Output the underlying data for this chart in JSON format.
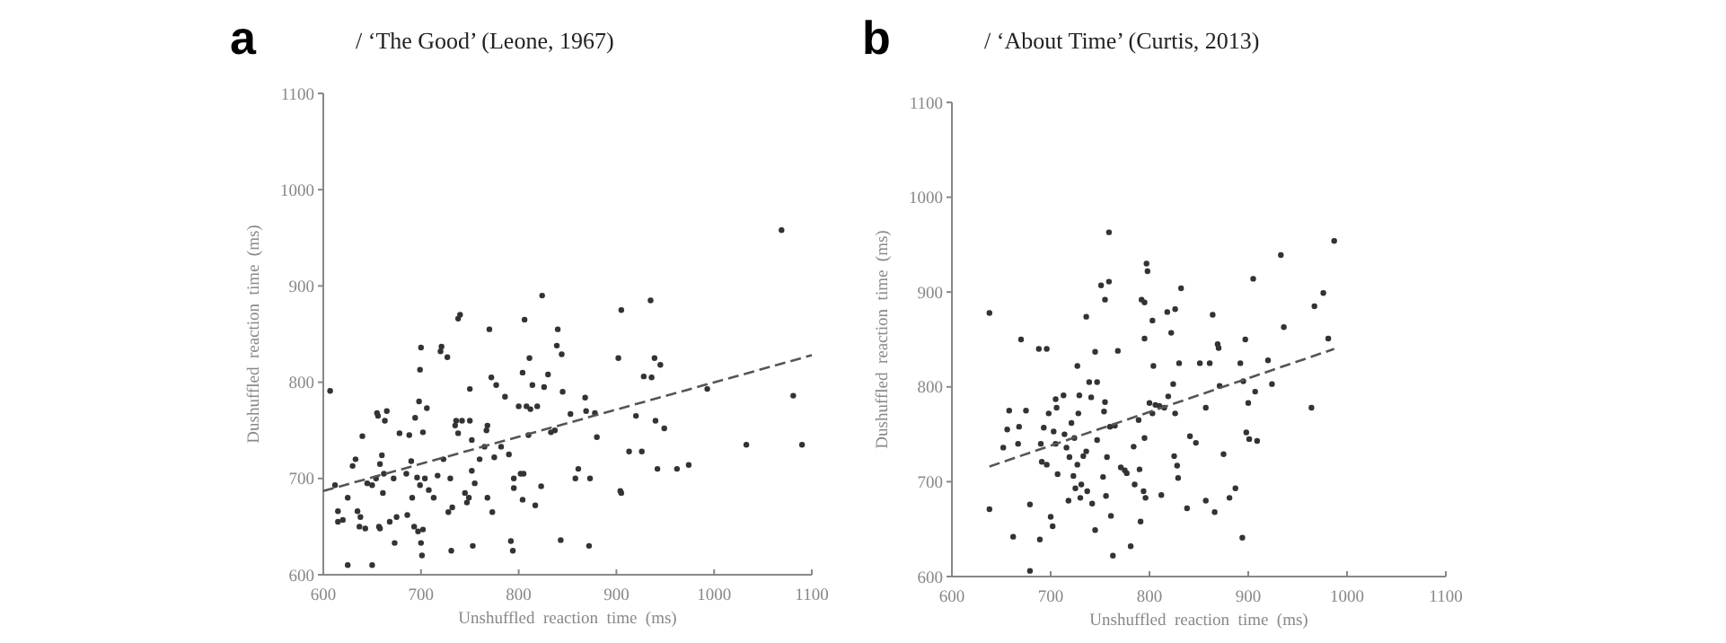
{
  "chart_data": [
    {
      "type": "scatter",
      "title": "/ ‘The Good’ (Leone, 1967)",
      "annotations": [
        "a"
      ],
      "xlabel": "Unshuffled  reaction  time  (ms)",
      "ylabel": "Dushuffled  reaction  time  (ms)",
      "xlim": [
        600,
        1100
      ],
      "ylim": [
        600,
        1100
      ],
      "xticks": [
        600,
        700,
        800,
        900,
        1000,
        1100
      ],
      "yticks": [
        600,
        700,
        800,
        900,
        1000,
        1100
      ],
      "series": [
        {
          "type": "scatter",
          "marker": "circle",
          "color": "#333333",
          "x": [
            607,
            612,
            615,
            615,
            620,
            625,
            625,
            630,
            633,
            635,
            637,
            638,
            640,
            643,
            645,
            650,
            650,
            654,
            655,
            656,
            657,
            658,
            658,
            660,
            661,
            662,
            663,
            665,
            668,
            672,
            673,
            675,
            678,
            685,
            686,
            688,
            690,
            691,
            693,
            694,
            696,
            697,
            698,
            699,
            699,
            700,
            700,
            701,
            702,
            702,
            704,
            706,
            708,
            713,
            717,
            720,
            721,
            723,
            727,
            728,
            730,
            731,
            732,
            735,
            736,
            738,
            738,
            740,
            742,
            745,
            747,
            749,
            750,
            750,
            752,
            752,
            753,
            755,
            760,
            765,
            767,
            768,
            768,
            770,
            772,
            773,
            775,
            777,
            782,
            786,
            790,
            792,
            794,
            795,
            795,
            800,
            802,
            804,
            804,
            805,
            806,
            808,
            810,
            811,
            812,
            814,
            817,
            819,
            823,
            824,
            826,
            830,
            833,
            837,
            839,
            840,
            843,
            844,
            845,
            853,
            858,
            861,
            868,
            869,
            872,
            873,
            878,
            880,
            902,
            904,
            905,
            905,
            913,
            920,
            926,
            928,
            935,
            936,
            939,
            940,
            942,
            945,
            949,
            962,
            974,
            993,
            1033,
            1069,
            1081,
            1090
          ],
          "values": [
            791,
            693,
            666,
            655,
            657,
            610,
            680,
            713,
            720,
            666,
            650,
            660,
            744,
            648,
            695,
            610,
            693,
            700,
            768,
            765,
            650,
            648,
            715,
            724,
            685,
            705,
            760,
            770,
            655,
            700,
            633,
            660,
            747,
            705,
            662,
            745,
            718,
            680,
            650,
            763,
            701,
            645,
            780,
            693,
            813,
            836,
            633,
            620,
            647,
            748,
            700,
            773,
            688,
            680,
            703,
            832,
            837,
            720,
            826,
            665,
            700,
            625,
            670,
            755,
            760,
            747,
            866,
            870,
            760,
            685,
            675,
            680,
            793,
            760,
            740,
            708,
            630,
            695,
            720,
            733,
            750,
            755,
            680,
            855,
            805,
            665,
            722,
            797,
            733,
            785,
            725,
            635,
            625,
            700,
            690,
            775,
            705,
            678,
            810,
            705,
            865,
            775,
            745,
            825,
            772,
            797,
            672,
            775,
            692,
            890,
            795,
            808,
            748,
            750,
            838,
            855,
            636,
            829,
            790,
            767,
            700,
            710,
            784,
            770,
            630,
            700,
            768,
            743,
            825,
            687,
            685,
            875,
            728,
            765,
            728,
            806,
            885,
            805,
            825,
            760,
            710,
            818,
            752,
            710,
            714,
            793,
            735,
            958,
            786,
            735
          ]
        },
        {
          "type": "line",
          "color": "#555555",
          "line_style": "dashed",
          "x": [
            600,
            1100
          ],
          "values": [
            687,
            828
          ]
        }
      ]
    },
    {
      "type": "scatter",
      "title": "/ ‘About Time’ (Curtis, 2013)",
      "annotations": [
        "b"
      ],
      "xlabel": "Unshuffled  reaction  time  (ms)",
      "ylabel": "Dushuffled  reaction  time  (ms)",
      "xlim": [
        600,
        1100
      ],
      "ylim": [
        600,
        1100
      ],
      "xticks": [
        600,
        700,
        800,
        900,
        1000,
        1100
      ],
      "yticks": [
        600,
        700,
        800,
        900,
        1000,
        1100
      ],
      "series": [
        {
          "type": "scatter",
          "marker": "circle",
          "color": "#333333",
          "x": [
            638,
            638,
            652,
            656,
            658,
            662,
            667,
            668,
            670,
            675,
            679,
            679,
            688,
            689,
            690,
            691,
            693,
            696,
            696,
            698,
            700,
            702,
            703,
            705,
            706,
            705,
            707,
            713,
            714,
            716,
            718,
            719,
            721,
            723,
            724,
            725,
            727,
            727,
            728,
            729,
            730,
            731,
            733,
            736,
            736,
            737,
            739,
            741,
            742,
            745,
            745,
            747,
            747,
            751,
            753,
            754,
            755,
            755,
            756,
            757,
            759,
            759,
            760,
            761,
            763,
            765,
            768,
            771,
            775,
            777,
            781,
            784,
            785,
            789,
            790,
            791,
            792,
            794,
            795,
            795,
            795,
            796,
            797,
            798,
            800,
            803,
            804,
            803,
            806,
            810,
            812,
            815,
            818,
            819,
            822,
            824,
            825,
            826,
            826,
            828,
            829,
            830,
            832,
            838,
            841,
            847,
            851,
            857,
            857,
            861,
            864,
            866,
            869,
            870,
            871,
            875,
            881,
            887,
            892,
            894,
            895,
            897,
            898,
            900,
            901,
            905,
            907,
            909,
            920,
            924,
            933,
            936,
            964,
            967,
            976,
            981,
            987
          ],
          "values": [
            878,
            671,
            736,
            755,
            775,
            642,
            740,
            758,
            850,
            775,
            676,
            606,
            840,
            639,
            740,
            721,
            757,
            718,
            840,
            772,
            663,
            653,
            753,
            787,
            778,
            740,
            708,
            791,
            750,
            736,
            680,
            726,
            762,
            706,
            746,
            693,
            822,
            718,
            772,
            791,
            683,
            697,
            727,
            732,
            874,
            690,
            805,
            789,
            677,
            837,
            649,
            805,
            744,
            907,
            705,
            774,
            784,
            892,
            685,
            726,
            911,
            963,
            758,
            664,
            622,
            759,
            838,
            715,
            712,
            709,
            632,
            737,
            697,
            765,
            713,
            658,
            892,
            690,
            889,
            851,
            746,
            683,
            930,
            922,
            783,
            870,
            822,
            772,
            781,
            780,
            686,
            778,
            879,
            790,
            857,
            803,
            727,
            882,
            772,
            717,
            704,
            825,
            904,
            672,
            748,
            741,
            825,
            778,
            680,
            825,
            876,
            668,
            845,
            841,
            801,
            729,
            683,
            693,
            825,
            641,
            806,
            850,
            752,
            783,
            745,
            914,
            795,
            743,
            828,
            803,
            939,
            863,
            778,
            885,
            899,
            851,
            954
          ]
        },
        {
          "type": "line",
          "color": "#555555",
          "line_style": "dashed",
          "x": [
            638,
            987
          ],
          "values": [
            716,
            840
          ]
        }
      ]
    }
  ]
}
